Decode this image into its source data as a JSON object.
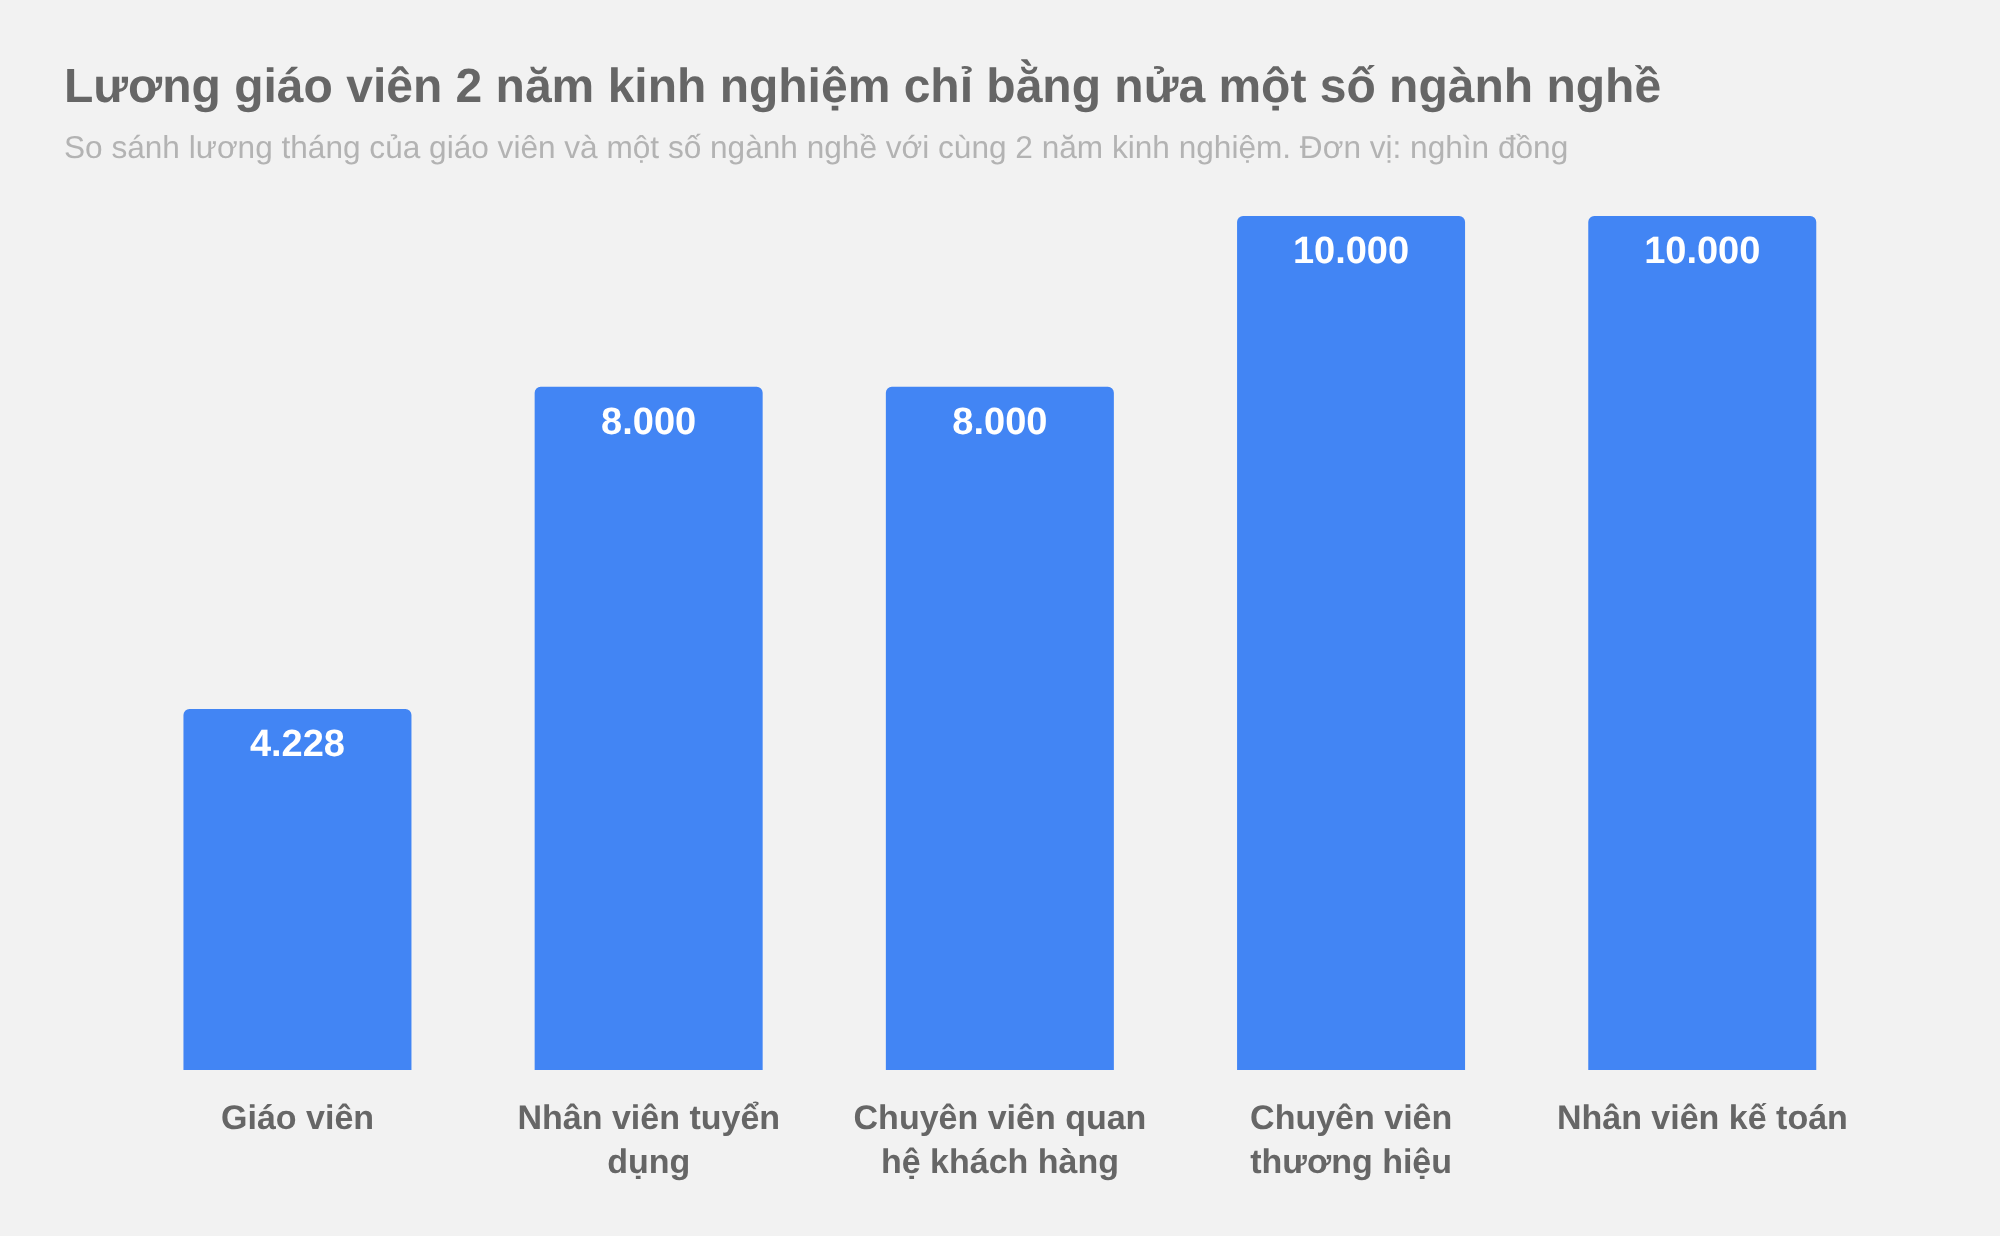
{
  "chart_data": {
    "type": "bar",
    "title": "Lương giáo viên 2 năm kinh nghiệm chỉ bằng nửa một số ngành nghề",
    "subtitle": "So sánh lương tháng của giáo viên và một số ngành nghề với cùng 2 năm kinh nghiệm. Đơn vị: nghìn đồng",
    "categories": [
      "Giáo viên",
      "Nhân viên tuyển dụng",
      "Chuyên viên quan hệ khách hàng",
      "Chuyên viên thương hiệu",
      "Nhân viên kế toán"
    ],
    "values": [
      4228,
      8000,
      8000,
      10000,
      10000
    ],
    "value_labels": [
      "4.228",
      "8.000",
      "8.000",
      "10.000",
      "10.000"
    ],
    "color": "#4285f4",
    "grid": false,
    "legend": false
  }
}
